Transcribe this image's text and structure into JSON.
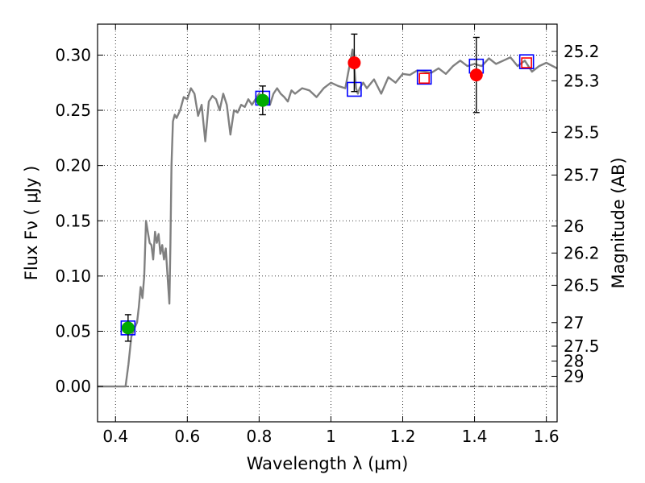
{
  "chart_data": {
    "type": "line",
    "xlabel": "Wavelength  λ (μm)",
    "ylabel": "Flux  Fν ( μJy )",
    "ylabel_right": "Magnitude (AB)",
    "xlim": [
      0.35,
      1.63
    ],
    "ylim": [
      -0.032,
      0.328
    ],
    "grid": true,
    "x_ticks": [
      0.4,
      0.6,
      0.8,
      1.0,
      1.2,
      1.4,
      1.6
    ],
    "x_tick_labels": [
      "0.4",
      "0.6",
      "0.8",
      "1",
      "1.2",
      "1.4",
      "1.6"
    ],
    "y_ticks": [
      0.0,
      0.05,
      0.1,
      0.15,
      0.2,
      0.25,
      0.3
    ],
    "y_tick_labels": [
      "0.00",
      "0.05",
      "0.10",
      "0.15",
      "0.20",
      "0.25",
      "0.30"
    ],
    "mag_ticks": [
      {
        "label": "25.2",
        "flux": 0.3034
      },
      {
        "label": "25.3",
        "flux": 0.2767
      },
      {
        "label": "25.5",
        "flux": 0.2301
      },
      {
        "label": "25.7",
        "flux": 0.1914
      },
      {
        "label": "26",
        "flux": 0.1452
      },
      {
        "label": "26.2",
        "flux": 0.1208
      },
      {
        "label": "26.5",
        "flux": 0.0916
      },
      {
        "label": "27",
        "flux": 0.0578
      },
      {
        "label": "27.5",
        "flux": 0.0365
      },
      {
        "label": "28",
        "flux": 0.023
      },
      {
        "label": "29",
        "flux": 0.0092
      }
    ],
    "model_spectrum": {
      "color": "#808080",
      "x": [
        0.35,
        0.365,
        0.38,
        0.395,
        0.41,
        0.42,
        0.428,
        0.436,
        0.444,
        0.452,
        0.46,
        0.465,
        0.47,
        0.475,
        0.48,
        0.485,
        0.49,
        0.495,
        0.5,
        0.505,
        0.51,
        0.515,
        0.52,
        0.525,
        0.53,
        0.535,
        0.54,
        0.545,
        0.55,
        0.553,
        0.556,
        0.56,
        0.565,
        0.57,
        0.58,
        0.59,
        0.6,
        0.61,
        0.62,
        0.63,
        0.64,
        0.65,
        0.66,
        0.67,
        0.68,
        0.69,
        0.7,
        0.71,
        0.72,
        0.73,
        0.74,
        0.75,
        0.76,
        0.77,
        0.78,
        0.79,
        0.8,
        0.81,
        0.82,
        0.83,
        0.84,
        0.85,
        0.86,
        0.87,
        0.88,
        0.89,
        0.9,
        0.92,
        0.94,
        0.96,
        0.98,
        1.0,
        1.02,
        1.04,
        1.06,
        1.065,
        1.07,
        1.075,
        1.08,
        1.09,
        1.1,
        1.12,
        1.14,
        1.16,
        1.18,
        1.2,
        1.22,
        1.24,
        1.26,
        1.28,
        1.3,
        1.32,
        1.34,
        1.36,
        1.38,
        1.4,
        1.42,
        1.44,
        1.46,
        1.48,
        1.5,
        1.52,
        1.54,
        1.56,
        1.58,
        1.6,
        1.63
      ],
      "y": [
        0.0,
        0.0,
        0.0,
        0.0,
        0.0,
        0.0,
        0.0,
        0.02,
        0.045,
        0.052,
        0.058,
        0.072,
        0.09,
        0.08,
        0.1,
        0.15,
        0.14,
        0.13,
        0.128,
        0.115,
        0.14,
        0.13,
        0.138,
        0.12,
        0.128,
        0.115,
        0.125,
        0.1,
        0.075,
        0.13,
        0.2,
        0.24,
        0.246,
        0.243,
        0.25,
        0.262,
        0.26,
        0.27,
        0.265,
        0.245,
        0.255,
        0.222,
        0.258,
        0.263,
        0.26,
        0.25,
        0.265,
        0.255,
        0.228,
        0.25,
        0.248,
        0.255,
        0.253,
        0.26,
        0.255,
        0.26,
        0.265,
        0.262,
        0.258,
        0.255,
        0.265,
        0.27,
        0.265,
        0.262,
        0.258,
        0.268,
        0.265,
        0.27,
        0.268,
        0.262,
        0.27,
        0.275,
        0.272,
        0.27,
        0.305,
        0.29,
        0.27,
        0.265,
        0.27,
        0.275,
        0.27,
        0.278,
        0.265,
        0.28,
        0.275,
        0.283,
        0.282,
        0.286,
        0.285,
        0.284,
        0.288,
        0.283,
        0.29,
        0.295,
        0.29,
        0.292,
        0.29,
        0.297,
        0.292,
        0.295,
        0.298,
        0.29,
        0.295,
        0.285,
        0.29,
        0.293,
        0.288
      ]
    },
    "series": [
      {
        "marker": "square",
        "color": "#0000ff",
        "points": [
          {
            "x": 0.435,
            "y": 0.053
          },
          {
            "x": 0.81,
            "y": 0.261
          },
          {
            "x": 1.065,
            "y": 0.269
          },
          {
            "x": 1.26,
            "y": 0.28
          },
          {
            "x": 1.405,
            "y": 0.29
          },
          {
            "x": 1.545,
            "y": 0.294
          }
        ]
      },
      {
        "marker": "square",
        "color": "#ff0000",
        "points": [
          {
            "x": 1.26,
            "y": 0.279
          },
          {
            "x": 1.545,
            "y": 0.293
          }
        ]
      },
      {
        "marker": "circle",
        "color": "#00aa00",
        "points": [
          {
            "x": 0.435,
            "y": 0.053,
            "yerr": 0.012
          },
          {
            "x": 0.81,
            "y": 0.259,
            "yerr": 0.013
          }
        ]
      },
      {
        "marker": "circle",
        "color": "#ff0000",
        "points": [
          {
            "x": 1.065,
            "y": 0.293,
            "yerr": 0.026
          },
          {
            "x": 1.405,
            "y": 0.282,
            "yerr": 0.034
          }
        ]
      }
    ]
  }
}
